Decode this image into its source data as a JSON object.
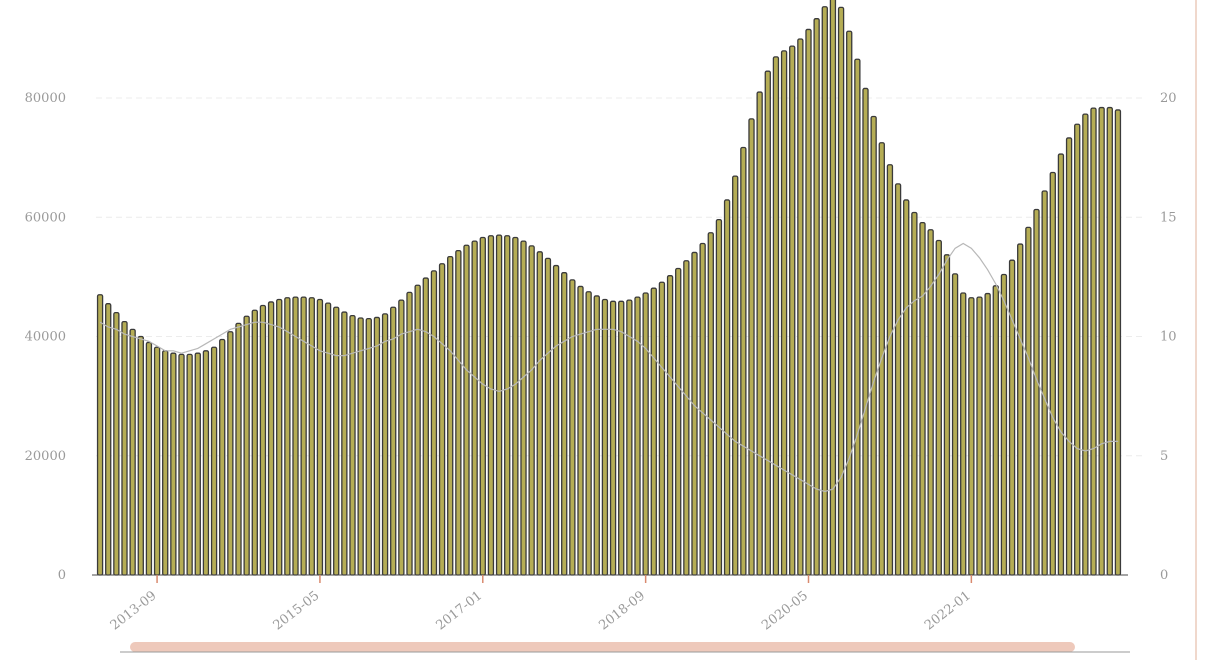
{
  "chart_data": {
    "type": "bar",
    "title": "",
    "xlabel": "",
    "ylabel": "",
    "ylabel_right": "",
    "grid": true,
    "ylim": [
      0,
      90000
    ],
    "ylim_right": [
      0,
      22.5
    ],
    "y_ticks": [
      "0",
      "20000",
      "40000",
      "60000",
      "80000"
    ],
    "y_ticks_right": [
      "0",
      "5",
      "10",
      "15",
      "20"
    ],
    "x_ticks": [
      "2013-09",
      "2015-05",
      "2017-01",
      "2018-09",
      "2020-05",
      "2022-01"
    ],
    "bar_color": "#b5ad55",
    "bar_outline_color": "#3a3a3a",
    "line_color": "#b8b8b8",
    "slider_color": "#e8b7a4",
    "series": [
      {
        "values": [
          47000,
          45500,
          44000,
          42500,
          41200,
          40000,
          39000,
          38200,
          37600,
          37200,
          37000,
          37000,
          37200,
          37600,
          38200,
          39500,
          40800,
          42200,
          43400,
          44400,
          45200,
          45800,
          46200,
          46500,
          46600,
          46600,
          46500,
          46200,
          45600,
          44900,
          44100,
          43500,
          43100,
          43000,
          43200,
          43800,
          44900,
          46100,
          47400,
          48600,
          49800,
          51000,
          52200,
          53400,
          54400,
          55300,
          56000,
          56600,
          56900,
          57000,
          56900,
          56600,
          56000,
          55200,
          54200,
          53100,
          51900,
          50700,
          49500,
          48400,
          47500,
          46800,
          46200,
          45900,
          45900,
          46100,
          46600,
          47300,
          48100,
          49100,
          50200,
          51400,
          52700,
          54100,
          55600,
          57400,
          59600,
          62900,
          66900,
          71700,
          76500,
          81000,
          84500,
          86900,
          87900,
          88700,
          89900,
          91500,
          93300,
          95300,
          97000,
          95200,
          91200,
          86500,
          81600,
          76900,
          72500,
          68800,
          65600,
          62900,
          60800,
          59100,
          57900,
          56100,
          53700,
          50500,
          47300,
          46500,
          46600,
          47200,
          48500,
          50400,
          52800,
          55500,
          58300,
          61300,
          64400,
          67500,
          70600,
          73300,
          75600,
          77300,
          78300,
          78400,
          78400,
          78000
        ]
      },
      {
        "values": [
          10.6,
          10.4,
          10.3,
          10.1,
          10.0,
          9.9,
          9.8,
          9.6,
          9.4,
          9.4,
          9.3,
          9.4,
          9.5,
          9.7,
          9.9,
          10.1,
          10.3,
          10.4,
          10.5,
          10.6,
          10.6,
          10.5,
          10.4,
          10.2,
          10.0,
          9.8,
          9.6,
          9.4,
          9.3,
          9.2,
          9.2,
          9.3,
          9.4,
          9.5,
          9.6,
          9.8,
          9.9,
          10.1,
          10.2,
          10.3,
          10.2,
          10.0,
          9.7,
          9.4,
          9.0,
          8.6,
          8.3,
          8.0,
          7.8,
          7.7,
          7.8,
          8.0,
          8.3,
          8.6,
          9.0,
          9.3,
          9.6,
          9.8,
          10.0,
          10.1,
          10.2,
          10.3,
          10.3,
          10.3,
          10.2,
          10.0,
          9.8,
          9.5,
          9.1,
          8.7,
          8.3,
          7.9,
          7.5,
          7.1,
          6.8,
          6.5,
          6.2,
          5.9,
          5.6,
          5.4,
          5.2,
          5.0,
          4.8,
          4.6,
          4.4,
          4.2,
          4.0,
          3.8,
          3.6,
          3.5,
          3.6,
          4.1,
          4.9,
          5.9,
          7.0,
          8.1,
          9.1,
          10.0,
          10.7,
          11.2,
          11.5,
          11.7,
          12.1,
          12.6,
          13.2,
          13.7,
          13.9,
          13.7,
          13.3,
          12.8,
          12.2,
          11.5,
          10.7,
          9.9,
          9.1,
          8.2,
          7.4,
          6.6,
          6.0,
          5.6,
          5.3,
          5.2,
          5.3,
          5.5,
          5.6,
          5.6
        ]
      }
    ]
  }
}
